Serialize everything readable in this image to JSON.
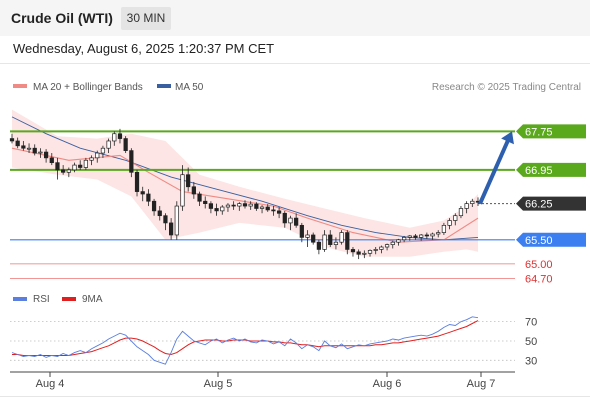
{
  "header": {
    "instrument": "Crude Oil (WTI)",
    "timeframe": "30 MIN",
    "datetime": "Wednesday, August 6, 2025 1:20:37 PM CET"
  },
  "legend": {
    "ma20": "MA 20 + Bollinger Bands",
    "ma50": "MA 50",
    "credit": "Research © 2025 Trading Central"
  },
  "rsi_legend": {
    "rsi": "RSI",
    "ma": "9MA"
  },
  "colors": {
    "ma20": "#f08a84",
    "ma50": "#3a5fa0",
    "bands": "#fbe1df",
    "resistance": "#5aa81c",
    "pivot": "#333333",
    "support": "#3c7ff0",
    "minor_support": "#ee7272",
    "arrow": "#2d5fae",
    "rsi": "#5b7fe0",
    "rsi_ma": "#e02020"
  },
  "chart_data": [
    {
      "type": "candlestick",
      "x_ticks": [
        "Aug 4",
        "Aug 5",
        "Aug 6",
        "Aug 7"
      ],
      "ylim": [
        64.5,
        68.4
      ],
      "legend_position": "top",
      "candles": [
        [
          67.6,
          67.7,
          67.5,
          67.55
        ],
        [
          67.55,
          67.62,
          67.4,
          67.45
        ],
        [
          67.45,
          67.55,
          67.35,
          67.4
        ],
        [
          67.4,
          67.5,
          67.3,
          67.4
        ],
        [
          67.4,
          67.48,
          67.25,
          67.3
        ],
        [
          67.3,
          67.4,
          67.2,
          67.32
        ],
        [
          67.32,
          67.38,
          67.1,
          67.2
        ],
        [
          67.2,
          67.3,
          67.05,
          67.1
        ],
        [
          67.1,
          67.2,
          66.75,
          66.95
        ],
        [
          66.95,
          67.05,
          66.85,
          66.9
        ],
        [
          66.9,
          67.0,
          66.8,
          66.95
        ],
        [
          66.95,
          67.1,
          66.9,
          67.05
        ],
        [
          67.05,
          67.15,
          66.95,
          67.0
        ],
        [
          67.0,
          67.2,
          66.95,
          67.15
        ],
        [
          67.15,
          67.25,
          67.05,
          67.2
        ],
        [
          67.2,
          67.35,
          67.1,
          67.3
        ],
        [
          67.3,
          67.45,
          67.2,
          67.4
        ],
        [
          67.4,
          67.6,
          67.3,
          67.55
        ],
        [
          67.55,
          67.75,
          67.45,
          67.7
        ],
        [
          67.7,
          67.8,
          67.5,
          67.6
        ],
        [
          67.6,
          67.65,
          67.3,
          67.35
        ],
        [
          67.35,
          67.4,
          66.8,
          66.9
        ],
        [
          66.9,
          66.95,
          66.4,
          66.5
        ],
        [
          66.5,
          66.6,
          66.3,
          66.45
        ],
        [
          66.45,
          66.55,
          66.2,
          66.3
        ],
        [
          66.3,
          66.35,
          66.0,
          66.1
        ],
        [
          66.1,
          66.2,
          65.9,
          66.0
        ],
        [
          66.0,
          66.05,
          65.7,
          65.85
        ],
        [
          65.85,
          65.95,
          65.5,
          65.6
        ],
        [
          65.6,
          66.3,
          65.5,
          66.2
        ],
        [
          66.2,
          67.05,
          66.1,
          66.85
        ],
        [
          66.85,
          67.0,
          66.5,
          66.6
        ],
        [
          66.6,
          66.7,
          66.35,
          66.45
        ],
        [
          66.45,
          66.5,
          66.2,
          66.3
        ],
        [
          66.3,
          66.4,
          66.15,
          66.25
        ],
        [
          66.25,
          66.3,
          66.05,
          66.15
        ],
        [
          66.15,
          66.25,
          66.0,
          66.1
        ],
        [
          66.1,
          66.22,
          66.02,
          66.18
        ],
        [
          66.18,
          66.26,
          66.08,
          66.22
        ],
        [
          66.22,
          66.3,
          66.12,
          66.2
        ],
        [
          66.2,
          66.28,
          66.1,
          66.25
        ],
        [
          66.25,
          66.32,
          66.15,
          66.2
        ],
        [
          66.2,
          66.3,
          66.12,
          66.24
        ],
        [
          66.24,
          66.28,
          66.1,
          66.15
        ],
        [
          66.15,
          66.22,
          66.05,
          66.18
        ],
        [
          66.18,
          66.24,
          66.08,
          66.12
        ],
        [
          66.12,
          66.2,
          66.0,
          66.1
        ],
        [
          66.1,
          66.18,
          65.95,
          66.05
        ],
        [
          66.05,
          66.1,
          65.75,
          65.85
        ],
        [
          65.85,
          66.0,
          65.7,
          65.95
        ],
        [
          65.95,
          66.05,
          65.75,
          65.8
        ],
        [
          65.8,
          65.85,
          65.45,
          65.55
        ],
        [
          65.55,
          65.7,
          65.35,
          65.6
        ],
        [
          65.6,
          65.65,
          65.4,
          65.45
        ],
        [
          65.45,
          65.5,
          65.2,
          65.3
        ],
        [
          65.3,
          65.7,
          65.25,
          65.6
        ],
        [
          65.6,
          65.7,
          65.35,
          65.4
        ],
        [
          65.4,
          65.55,
          65.3,
          65.45
        ],
        [
          65.45,
          65.7,
          65.4,
          65.65
        ],
        [
          65.65,
          65.7,
          65.2,
          65.3
        ],
        [
          65.3,
          65.35,
          65.15,
          65.25
        ],
        [
          65.25,
          65.3,
          65.1,
          65.2
        ],
        [
          65.2,
          65.28,
          65.12,
          65.22
        ],
        [
          65.22,
          65.3,
          65.15,
          65.28
        ],
        [
          65.28,
          65.35,
          65.2,
          65.3
        ],
        [
          65.3,
          65.38,
          65.22,
          65.35
        ],
        [
          65.35,
          65.42,
          65.28,
          65.4
        ],
        [
          65.4,
          65.48,
          65.32,
          65.45
        ],
        [
          65.45,
          65.52,
          65.38,
          65.5
        ],
        [
          65.5,
          65.58,
          65.45,
          65.55
        ],
        [
          65.55,
          65.6,
          65.48,
          65.58
        ],
        [
          65.58,
          65.62,
          65.5,
          65.55
        ],
        [
          65.55,
          65.62,
          65.48,
          65.6
        ],
        [
          65.6,
          65.65,
          65.52,
          65.58
        ],
        [
          65.58,
          65.65,
          65.5,
          65.62
        ],
        [
          65.62,
          65.7,
          65.55,
          65.65
        ],
        [
          65.65,
          65.85,
          65.6,
          65.8
        ],
        [
          65.8,
          65.95,
          65.72,
          65.9
        ],
        [
          65.9,
          66.05,
          65.8,
          66.0
        ],
        [
          66.0,
          66.2,
          65.95,
          66.15
        ],
        [
          66.15,
          66.3,
          66.05,
          66.25
        ],
        [
          66.25,
          66.35,
          66.18,
          66.3
        ],
        [
          66.3,
          66.38,
          66.2,
          66.28
        ]
      ],
      "ma20": [
        [
          0,
          67.4
        ],
        [
          10,
          67.15
        ],
        [
          19,
          67.25
        ],
        [
          24,
          66.9
        ],
        [
          30,
          66.5
        ],
        [
          38,
          66.35
        ],
        [
          46,
          66.2
        ],
        [
          52,
          65.95
        ],
        [
          60,
          65.65
        ],
        [
          68,
          65.45
        ],
        [
          76,
          65.5
        ],
        [
          82,
          65.95
        ]
      ],
      "bollinger_upper": [
        [
          0,
          68.2
        ],
        [
          8,
          67.65
        ],
        [
          15,
          67.6
        ],
        [
          21,
          67.7
        ],
        [
          27,
          67.55
        ],
        [
          33,
          66.85
        ],
        [
          40,
          66.6
        ],
        [
          48,
          66.35
        ],
        [
          55,
          66.15
        ],
        [
          62,
          65.95
        ],
        [
          70,
          65.75
        ],
        [
          76,
          65.9
        ],
        [
          80,
          66.2
        ],
        [
          82,
          66.45
        ]
      ],
      "bollinger_lower": [
        [
          0,
          67.0
        ],
        [
          8,
          66.85
        ],
        [
          15,
          66.75
        ],
        [
          21,
          66.4
        ],
        [
          27,
          65.5
        ],
        [
          33,
          65.65
        ],
        [
          40,
          65.85
        ],
        [
          48,
          65.75
        ],
        [
          55,
          65.35
        ],
        [
          62,
          65.15
        ],
        [
          70,
          65.15
        ],
        [
          76,
          65.25
        ],
        [
          80,
          65.3
        ],
        [
          82,
          65.25
        ]
      ],
      "ma50": [
        [
          0,
          68.05
        ],
        [
          6,
          67.7
        ],
        [
          12,
          67.4
        ],
        [
          20,
          67.15
        ],
        [
          28,
          66.8
        ],
        [
          36,
          66.55
        ],
        [
          44,
          66.3
        ],
        [
          52,
          66.0
        ],
        [
          58,
          65.8
        ],
        [
          64,
          65.65
        ],
        [
          70,
          65.55
        ],
        [
          76,
          65.5
        ],
        [
          82,
          65.55
        ]
      ],
      "forecast_arrow": {
        "from": 66.25,
        "to": 67.75
      },
      "levels": [
        {
          "value": 67.75,
          "label": "67.75",
          "role": "resistance"
        },
        {
          "value": 66.95,
          "label": "66.95",
          "role": "resistance"
        },
        {
          "value": 66.25,
          "label": "66.25",
          "role": "pivot"
        },
        {
          "value": 65.5,
          "label": "65.50",
          "role": "support"
        },
        {
          "value": 65.0,
          "label": "65.00",
          "role": "minor_support"
        },
        {
          "value": 64.7,
          "label": "64.70",
          "role": "minor_support"
        }
      ]
    },
    {
      "type": "line",
      "ylim": [
        20,
        82
      ],
      "y_ticks": [
        70,
        50,
        30
      ],
      "rsi": [
        38,
        36,
        34,
        35,
        34,
        36,
        33,
        35,
        34,
        37,
        35,
        38,
        40,
        38,
        42,
        45,
        48,
        52,
        55,
        58,
        56,
        50,
        44,
        40,
        36,
        30,
        28,
        26,
        38,
        52,
        60,
        55,
        50,
        48,
        46,
        50,
        52,
        48,
        51,
        53,
        50,
        52,
        49,
        48,
        51,
        50,
        47,
        49,
        45,
        52,
        48,
        42,
        46,
        44,
        40,
        50,
        45,
        43,
        47,
        42,
        44,
        46,
        45,
        47,
        48,
        49,
        50,
        52,
        51,
        53,
        54,
        55,
        56,
        55,
        57,
        60,
        64,
        67,
        66,
        70,
        72,
        75,
        74
      ],
      "rsi_ma": [
        36,
        36,
        35,
        35,
        35,
        35,
        35,
        35,
        35,
        35,
        35,
        36,
        37,
        38,
        39,
        41,
        43,
        45,
        48,
        51,
        53,
        53,
        52,
        50,
        47,
        44,
        40,
        37,
        36,
        38,
        42,
        46,
        49,
        50,
        51,
        51,
        51,
        50,
        50,
        51,
        51,
        51,
        50,
        50,
        50,
        50,
        49,
        49,
        48,
        48,
        47,
        46,
        46,
        45,
        44,
        45,
        45,
        45,
        45,
        45,
        45,
        45,
        45,
        45,
        46,
        46,
        47,
        48,
        48,
        49,
        50,
        51,
        52,
        53,
        54,
        55,
        57,
        59,
        61,
        63,
        65,
        68,
        71
      ]
    }
  ]
}
